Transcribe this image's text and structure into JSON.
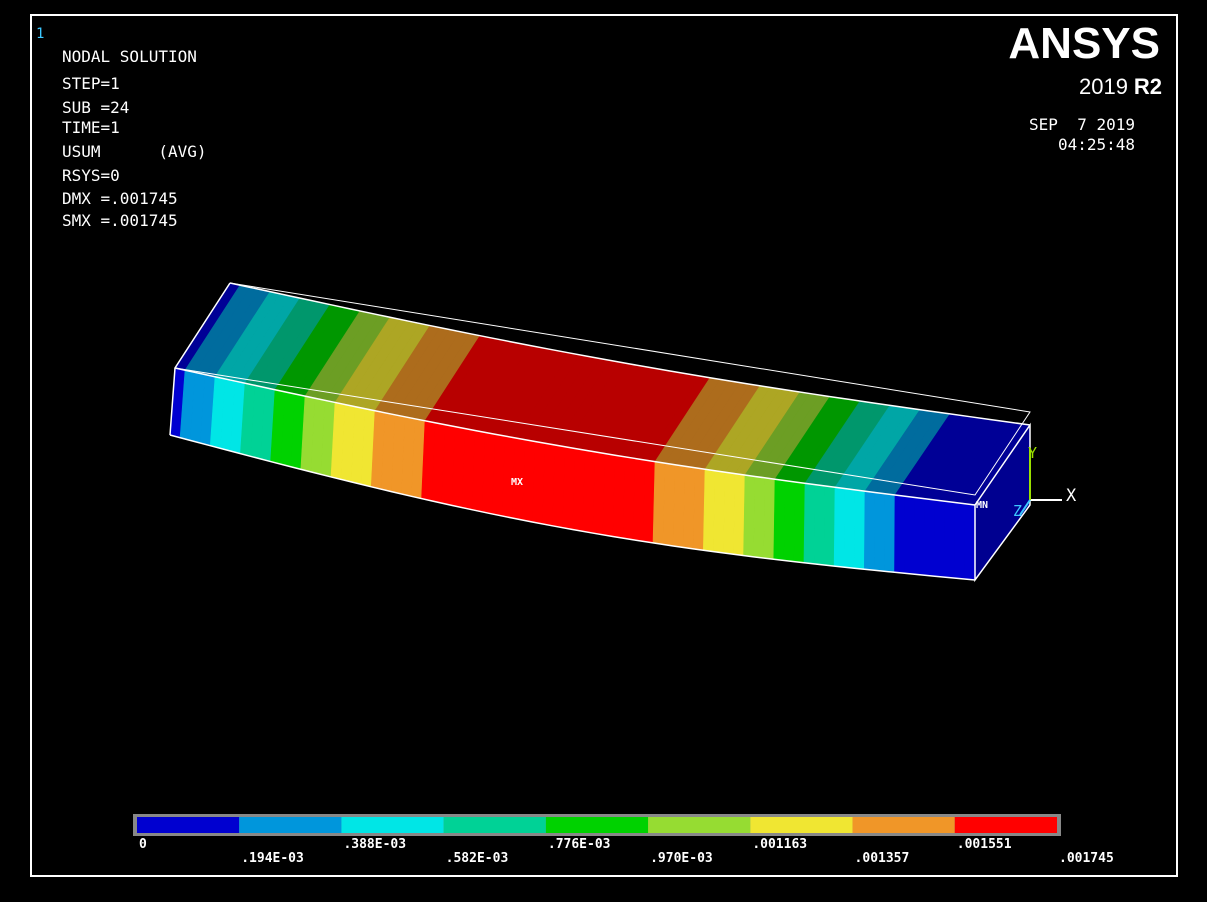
{
  "window_number": "1",
  "header": {
    "title": "NODAL SOLUTION",
    "lines": [
      "STEP=1",
      "SUB =24",
      "TIME=1",
      "USUM      (AVG)",
      "RSYS=0",
      "DMX =.001745",
      "SMX =.001745"
    ]
  },
  "logo": {
    "name": "ANSYS",
    "version": "2019",
    "release": "R2"
  },
  "timestamp": {
    "date": "SEP  7 2019",
    "time": "04:25:48"
  },
  "markers": {
    "max": "MX",
    "min": "MN"
  },
  "axes": {
    "x": "X",
    "y": "Y",
    "z": "Z"
  },
  "legend": {
    "colors": [
      "#0000d0",
      "#0096dc",
      "#00e6e6",
      "#00d296",
      "#00d200",
      "#96dc32",
      "#f0e632",
      "#f09628",
      "#ff0000"
    ],
    "labels": [
      "0",
      ".194E-03",
      ".388E-03",
      ".582E-03",
      ".776E-03",
      ".970E-03",
      ".001163",
      ".001357",
      ".001551",
      ".001745"
    ]
  }
}
